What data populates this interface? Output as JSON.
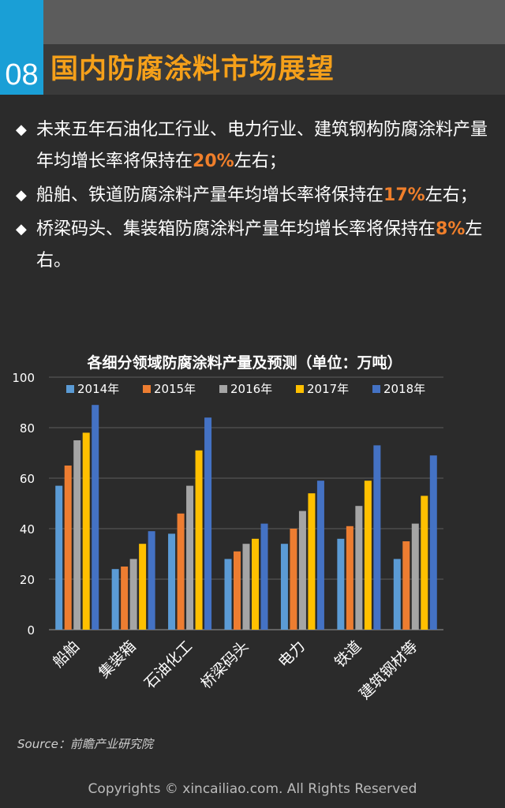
{
  "header": {
    "number": "08",
    "title": "国内防腐涂料市场展望"
  },
  "bullets": [
    {
      "before": "未来五年石油化工行业、电力行业、建筑钢构防腐涂料产量年均增长率将保持在",
      "highlight": "20%",
      "after": "左右；"
    },
    {
      "before": "船舶、铁道防腐涂料产量年均增长率将保持在",
      "highlight": "17%",
      "after": "左右；"
    },
    {
      "before": "桥梁码头、集装箱防腐涂料产量年均增长率将保持在",
      "highlight": "8%",
      "after": "左右。"
    }
  ],
  "chart_data": {
    "type": "bar",
    "title": "各细分领域防腐涂料产量及预测（单位：万吨）",
    "categories": [
      "船舶",
      "集装箱",
      "石油化工",
      "桥梁码头",
      "电力",
      "铁道",
      "建筑钢材等"
    ],
    "ylim": [
      0,
      100
    ],
    "yticks": [
      "0",
      "20",
      "40",
      "60",
      "80",
      "100"
    ],
    "grid": true,
    "legend_position": "top",
    "series": [
      {
        "name": "2014年",
        "color": "#5b9bd5",
        "values": [
          57,
          24,
          38,
          28,
          34,
          36,
          28
        ]
      },
      {
        "name": "2015年",
        "color": "#ed7d31",
        "values": [
          65,
          25,
          46,
          31,
          40,
          41,
          35
        ]
      },
      {
        "name": "2016年",
        "color": "#a5a5a5",
        "values": [
          75,
          28,
          57,
          34,
          47,
          49,
          42
        ]
      },
      {
        "name": "2017年",
        "color": "#ffc000",
        "values": [
          78,
          34,
          71,
          36,
          54,
          59,
          53
        ]
      },
      {
        "name": "2018年",
        "color": "#4472c4",
        "values": [
          89,
          39,
          84,
          42,
          59,
          73,
          69
        ]
      }
    ]
  },
  "source": "Source：前瞻产业研究院",
  "copyright": "Copyrights © xincailiao.com. All Rights Reserved"
}
